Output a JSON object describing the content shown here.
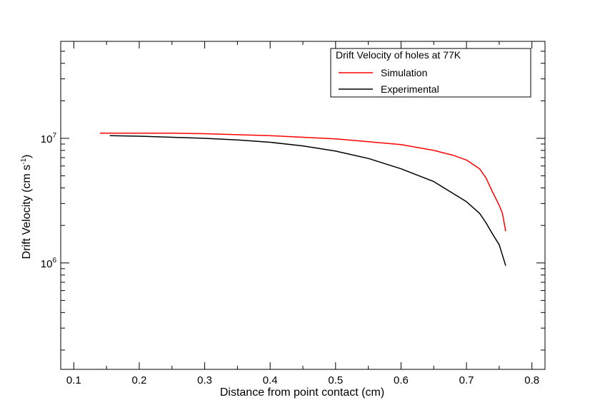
{
  "chart_data": {
    "type": "line",
    "xlabel": "Distance from point contact (cm)",
    "ylabel_main": "Drift Velocity (cm s",
    "ylabel_sup": "-1",
    "ylabel_close": ")",
    "xlim": [
      0.08,
      0.82
    ],
    "ylim": [
      140000,
      60000000
    ],
    "y_scale": "log",
    "x_ticks": [
      0.1,
      0.2,
      0.3,
      0.4,
      0.5,
      0.6,
      0.7,
      0.8
    ],
    "x_tick_labels": [
      "0.1",
      "0.2",
      "0.3",
      "0.4",
      "0.5",
      "0.6",
      "0.7",
      "0.8"
    ],
    "y_major_ticks": [
      {
        "value": 1000000,
        "base": "10",
        "exp": "6"
      },
      {
        "value": 10000000,
        "base": "10",
        "exp": "7"
      }
    ],
    "grid": false,
    "legend": {
      "title": "Drift Velocity of holes at 77K",
      "position": "top-right"
    },
    "series": [
      {
        "name": "Simulation",
        "color": "#ff0000",
        "x": [
          0.14,
          0.2,
          0.25,
          0.3,
          0.35,
          0.4,
          0.45,
          0.5,
          0.55,
          0.6,
          0.65,
          0.68,
          0.7,
          0.72,
          0.73,
          0.74,
          0.75,
          0.755,
          0.76
        ],
        "y": [
          11000000,
          11000000,
          11000000,
          10900000,
          10700000,
          10500000,
          10200000,
          9900000,
          9400000,
          8900000,
          8000000,
          7300000,
          6700000,
          5700000,
          4800000,
          3700000,
          2900000,
          2500000,
          1800000
        ]
      },
      {
        "name": "Experimental",
        "color": "#000000",
        "x": [
          0.155,
          0.2,
          0.25,
          0.3,
          0.35,
          0.4,
          0.45,
          0.5,
          0.55,
          0.6,
          0.65,
          0.7,
          0.72,
          0.73,
          0.74,
          0.75,
          0.76
        ],
        "y": [
          10500000,
          10400000,
          10200000,
          10000000,
          9700000,
          9300000,
          8700000,
          7900000,
          6900000,
          5700000,
          4500000,
          3100000,
          2500000,
          2100000,
          1700000,
          1400000,
          950000
        ]
      }
    ]
  }
}
